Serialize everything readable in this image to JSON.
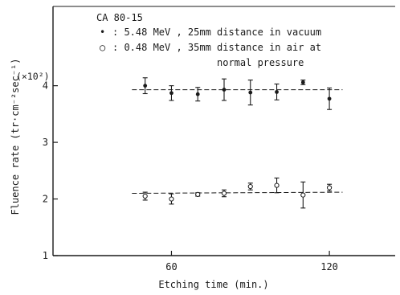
{
  "chart_data": {
    "type": "scatter",
    "title": "CA 80-15",
    "xlabel": "Etching time (min.)",
    "ylabel": "Fluence rate (tr·cm⁻²sec⁻¹)",
    "y_multiplier": "(×10²)",
    "xlim": [
      15,
      145
    ],
    "ylim": [
      1,
      5.4
    ],
    "x_ticks": [
      60,
      120
    ],
    "x_tick_labels": [
      "60",
      "120"
    ],
    "y_ticks": [
      1,
      2,
      3,
      4
    ],
    "y_tick_labels": [
      "1",
      "2",
      "3",
      "4"
    ],
    "grid": false,
    "legend_position": "top-left",
    "series": [
      {
        "name": "5.48 MeV , 25mm distance in vacuum",
        "marker": "filled",
        "legend_symbol": "•",
        "x": [
          50,
          60,
          70,
          80,
          90,
          100,
          110,
          120
        ],
        "y": [
          4.0,
          3.87,
          3.85,
          3.93,
          3.88,
          3.89,
          4.06,
          3.77
        ],
        "err": [
          0.14,
          0.13,
          0.12,
          0.19,
          0.22,
          0.14,
          0.04,
          0.19
        ],
        "fit": {
          "x": [
            45,
            125
          ],
          "y": [
            3.93,
            3.93
          ]
        }
      },
      {
        "name": "0.48 MeV , 35mm distance in air at normal pressure",
        "marker": "open",
        "legend_symbol": "○",
        "x": [
          50,
          60,
          70,
          80,
          90,
          100,
          110,
          120
        ],
        "y": [
          2.05,
          2.0,
          2.08,
          2.1,
          2.22,
          2.24,
          2.07,
          2.2
        ],
        "err": [
          0.07,
          0.09,
          0.03,
          0.06,
          0.06,
          0.13,
          0.23,
          0.06
        ],
        "fit": {
          "x": [
            45,
            125
          ],
          "y": [
            2.1,
            2.12
          ]
        }
      }
    ]
  }
}
